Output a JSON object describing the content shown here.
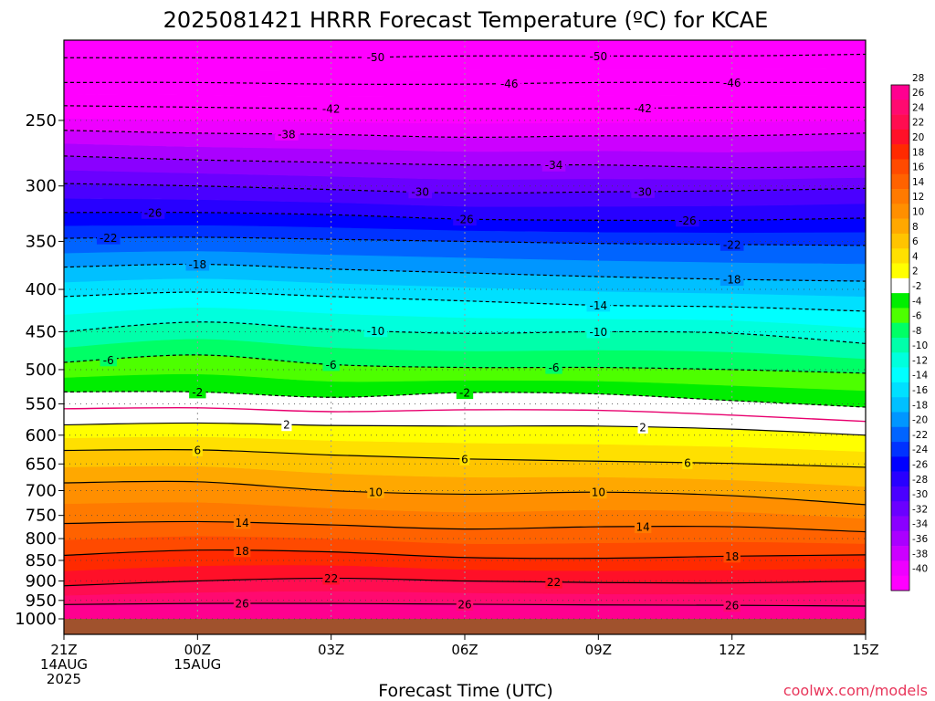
{
  "chart_data": {
    "type": "heatmap",
    "title": "2025081421 HRRR Forecast Temperature (ºC) for KCAE",
    "xlabel": "Forecast Time (UTC)",
    "ylabel": "",
    "x_ticks": [
      {
        "hour": 0,
        "lines": [
          "21Z",
          "14AUG",
          "2025"
        ]
      },
      {
        "hour": 3,
        "lines": [
          "00Z",
          "15AUG"
        ]
      },
      {
        "hour": 6,
        "lines": [
          "03Z"
        ]
      },
      {
        "hour": 9,
        "lines": [
          "06Z"
        ]
      },
      {
        "hour": 12,
        "lines": [
          "09Z"
        ]
      },
      {
        "hour": 15,
        "lines": [
          "12Z"
        ]
      },
      {
        "hour": 18,
        "lines": [
          "15Z"
        ]
      }
    ],
    "xlim_hours": [
      0,
      18
    ],
    "y_axis": {
      "scale": "log-pressure",
      "units": "hPa",
      "range": [
        1000,
        200
      ],
      "ticks": [
        250,
        300,
        350,
        400,
        450,
        500,
        550,
        600,
        650,
        700,
        750,
        800,
        850,
        900,
        950,
        1000
      ]
    },
    "color_scale": {
      "label_ticks": [
        28,
        26,
        24,
        22,
        20,
        18,
        16,
        14,
        12,
        10,
        8,
        6,
        4,
        2,
        -2,
        -4,
        -6,
        -8,
        -10,
        -12,
        -14,
        -16,
        -18,
        -20,
        -22,
        -24,
        -26,
        -28,
        -30,
        -32,
        -34,
        -36,
        -38,
        -40
      ],
      "bins": [
        {
          "range": [
            26,
            28
          ],
          "color": "#ff0090"
        },
        {
          "range": [
            24,
            26
          ],
          "color": "#ff0a70"
        },
        {
          "range": [
            22,
            24
          ],
          "color": "#ff0d50"
        },
        {
          "range": [
            20,
            22
          ],
          "color": "#ff1028"
        },
        {
          "range": [
            18,
            20
          ],
          "color": "#ff2a00"
        },
        {
          "range": [
            16,
            18
          ],
          "color": "#ff4a00"
        },
        {
          "range": [
            14,
            16
          ],
          "color": "#ff6200"
        },
        {
          "range": [
            12,
            14
          ],
          "color": "#ff7a00"
        },
        {
          "range": [
            10,
            12
          ],
          "color": "#ff8f00"
        },
        {
          "range": [
            8,
            10
          ],
          "color": "#ffa800"
        },
        {
          "range": [
            6,
            8
          ],
          "color": "#ffc400"
        },
        {
          "range": [
            4,
            6
          ],
          "color": "#ffe000"
        },
        {
          "range": [
            2,
            4
          ],
          "color": "#ffff00"
        },
        {
          "range": [
            -2,
            2
          ],
          "color": "#ffffff"
        },
        {
          "range": [
            -4,
            -2
          ],
          "color": "#00ee00"
        },
        {
          "range": [
            -6,
            -4
          ],
          "color": "#4dff00"
        },
        {
          "range": [
            -8,
            -6
          ],
          "color": "#00ff66"
        },
        {
          "range": [
            -10,
            -8
          ],
          "color": "#00ffaa"
        },
        {
          "range": [
            -12,
            -10
          ],
          "color": "#00ffdd"
        },
        {
          "range": [
            -14,
            -12
          ],
          "color": "#00ffff"
        },
        {
          "range": [
            -16,
            -14
          ],
          "color": "#00e0ff"
        },
        {
          "range": [
            -18,
            -16
          ],
          "color": "#00c0ff"
        },
        {
          "range": [
            -20,
            -18
          ],
          "color": "#0096ff"
        },
        {
          "range": [
            -22,
            -20
          ],
          "color": "#0064ff"
        },
        {
          "range": [
            -24,
            -22
          ],
          "color": "#0032ff"
        },
        {
          "range": [
            -26,
            -24
          ],
          "color": "#0000ff"
        },
        {
          "range": [
            -28,
            -26
          ],
          "color": "#2800ff"
        },
        {
          "range": [
            -30,
            -28
          ],
          "color": "#4a00ff"
        },
        {
          "range": [
            -32,
            -30
          ],
          "color": "#6a00ff"
        },
        {
          "range": [
            -34,
            -32
          ],
          "color": "#8a00ff"
        },
        {
          "range": [
            -36,
            -34
          ],
          "color": "#aa00ff"
        },
        {
          "range": [
            -38,
            -36
          ],
          "color": "#cc00ff"
        },
        {
          "range": [
            -40,
            -38
          ],
          "color": "#ee00ff"
        },
        {
          "range": [
            -42,
            -40
          ],
          "color": "#ff00ff"
        }
      ]
    },
    "surface_color": "#a0522d",
    "freezing_line_color": "#e8006e",
    "contour_hours": [
      0,
      3,
      6,
      9,
      12,
      15,
      18
    ],
    "contours": [
      {
        "value": 26,
        "pressure": [
          961,
          958,
          958,
          960,
          962,
          963,
          965
        ],
        "labels": [
          {
            "hour": 4,
            "text": "26"
          },
          {
            "hour": 9,
            "text": "26"
          },
          {
            "hour": 15,
            "text": "26"
          }
        ]
      },
      {
        "value": 22,
        "pressure": [
          912,
          900,
          893,
          900,
          904,
          905,
          900
        ],
        "labels": [
          {
            "hour": 6,
            "text": "22"
          },
          {
            "hour": 11,
            "text": "22"
          }
        ]
      },
      {
        "value": 18,
        "pressure": [
          838,
          826,
          830,
          843,
          845,
          840,
          837
        ],
        "labels": [
          {
            "hour": 4,
            "text": "18"
          },
          {
            "hour": 15,
            "text": "18"
          }
        ]
      },
      {
        "value": 14,
        "pressure": [
          767,
          763,
          770,
          779,
          774,
          774,
          785
        ],
        "labels": [
          {
            "hour": 4,
            "text": "14"
          },
          {
            "hour": 13,
            "text": "14"
          }
        ]
      },
      {
        "value": 10,
        "pressure": [
          685,
          683,
          700,
          707,
          703,
          710,
          728
        ],
        "labels": [
          {
            "hour": 7,
            "text": "10"
          },
          {
            "hour": 12,
            "text": "10"
          }
        ]
      },
      {
        "value": 6,
        "pressure": [
          626,
          625,
          634,
          641,
          645,
          649,
          656
        ],
        "labels": [
          {
            "hour": 3,
            "text": "6"
          },
          {
            "hour": 9,
            "text": "6"
          },
          {
            "hour": 14,
            "text": "6"
          }
        ]
      },
      {
        "value": 2,
        "pressure": [
          583,
          580,
          584,
          585,
          585,
          590,
          600
        ],
        "labels": [
          {
            "hour": 5,
            "text": "2"
          },
          {
            "hour": 13,
            "text": "2"
          }
        ]
      },
      {
        "value": -2,
        "pressure": [
          532,
          532,
          540,
          533,
          535,
          545,
          555
        ],
        "labels": [
          {
            "hour": 3,
            "text": "-2"
          },
          {
            "hour": 9,
            "text": "-2"
          }
        ]
      },
      {
        "value": -6,
        "pressure": [
          490,
          480,
          493,
          497,
          497,
          500,
          505
        ],
        "labels": [
          {
            "hour": 1,
            "text": "-6"
          },
          {
            "hour": 6,
            "text": "-6"
          },
          {
            "hour": 11,
            "text": "-6"
          }
        ]
      },
      {
        "value": -10,
        "pressure": [
          450,
          438,
          447,
          452,
          450,
          452,
          465
        ],
        "labels": [
          {
            "hour": 7,
            "text": "-10"
          },
          {
            "hour": 12,
            "text": "-10"
          }
        ]
      },
      {
        "value": -14,
        "pressure": [
          408,
          403,
          408,
          413,
          418,
          420,
          425
        ],
        "labels": [
          {
            "hour": 12,
            "text": "-14"
          }
        ]
      },
      {
        "value": -18,
        "pressure": [
          376,
          373,
          378,
          382,
          386,
          389,
          391
        ],
        "labels": [
          {
            "hour": 3,
            "text": "-18"
          },
          {
            "hour": 15,
            "text": "-18"
          }
        ]
      },
      {
        "value": -22,
        "pressure": [
          347,
          346,
          348,
          350,
          352,
          353,
          354
        ],
        "labels": [
          {
            "hour": 1,
            "text": "-22"
          },
          {
            "hour": 15,
            "text": "-22"
          }
        ]
      },
      {
        "value": -26,
        "pressure": [
          323,
          323,
          325,
          329,
          330,
          330,
          328
        ],
        "labels": [
          {
            "hour": 2,
            "text": "-26"
          },
          {
            "hour": 9,
            "text": "-26"
          },
          {
            "hour": 14,
            "text": "-26"
          }
        ]
      },
      {
        "value": -30,
        "pressure": [
          298,
          300,
          303,
          306,
          305,
          304,
          302
        ],
        "labels": [
          {
            "hour": 8,
            "text": "-30"
          },
          {
            "hour": 13,
            "text": "-30"
          }
        ]
      },
      {
        "value": -34,
        "pressure": [
          276,
          279,
          281,
          283,
          283,
          285,
          284
        ],
        "labels": [
          {
            "hour": 11,
            "text": "-34"
          }
        ]
      },
      {
        "value": -38,
        "pressure": [
          257,
          259,
          260,
          262,
          261,
          261,
          259
        ],
        "labels": [
          {
            "hour": 5,
            "text": "-38"
          }
        ]
      },
      {
        "value": -42,
        "pressure": [
          240,
          241,
          242,
          242,
          242,
          241,
          241
        ],
        "labels": [
          {
            "hour": 6,
            "text": "-42"
          },
          {
            "hour": 13,
            "text": "-42"
          }
        ]
      },
      {
        "value": -46,
        "pressure": [
          225,
          225,
          226,
          226,
          225,
          225,
          225
        ],
        "labels": [
          {
            "hour": 10,
            "text": "-46"
          },
          {
            "hour": 15,
            "text": "-46"
          }
        ]
      },
      {
        "value": -50,
        "pressure": [
          210,
          210,
          210,
          209,
          209,
          209,
          208
        ],
        "labels": [
          {
            "hour": 7,
            "text": "-50"
          },
          {
            "hour": 12,
            "text": "-50"
          }
        ]
      }
    ]
  },
  "credit": {
    "text": "coolwx.com/models",
    "color": "#e8355a"
  }
}
